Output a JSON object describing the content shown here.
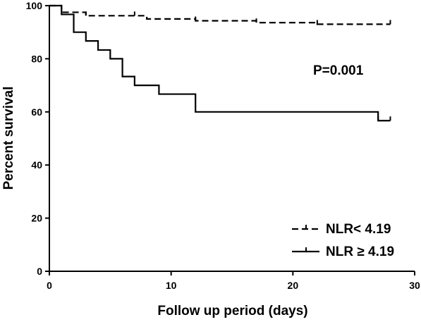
{
  "chart_data": {
    "type": "line",
    "subtype": "kaplan-meier",
    "title": "",
    "xlabel": "Follow up period (days)",
    "ylabel": "Percent survival",
    "xlim": [
      0,
      30
    ],
    "ylim": [
      0,
      100
    ],
    "x_ticks": [
      0,
      10,
      20,
      30
    ],
    "y_ticks": [
      0,
      20,
      40,
      60,
      80,
      100
    ],
    "grid": false,
    "legend_position": "bottom-right",
    "annotation": "P=0.001",
    "series": [
      {
        "name": "NLR< 4.19",
        "line_style": "dashed",
        "color": "#000000",
        "steps": [
          {
            "x": 0,
            "y": 100
          },
          {
            "x": 1,
            "y": 97.5
          },
          {
            "x": 3,
            "y": 96.2
          },
          {
            "x": 8,
            "y": 95.0
          },
          {
            "x": 12,
            "y": 94.3
          },
          {
            "x": 17,
            "y": 93.6
          },
          {
            "x": 22,
            "y": 93.0
          },
          {
            "x": 28,
            "y": 93.0
          }
        ],
        "censored": [
          3,
          7,
          12,
          17,
          22,
          28
        ]
      },
      {
        "name": "NLR ≥ 4.19",
        "line_style": "solid",
        "color": "#000000",
        "steps": [
          {
            "x": 0,
            "y": 100
          },
          {
            "x": 1,
            "y": 96.7
          },
          {
            "x": 2,
            "y": 90.0
          },
          {
            "x": 3,
            "y": 86.7
          },
          {
            "x": 4,
            "y": 83.3
          },
          {
            "x": 5,
            "y": 80.0
          },
          {
            "x": 6,
            "y": 73.3
          },
          {
            "x": 7,
            "y": 70.0
          },
          {
            "x": 9,
            "y": 66.7
          },
          {
            "x": 12,
            "y": 60.0
          },
          {
            "x": 27,
            "y": 56.7
          },
          {
            "x": 28,
            "y": 56.7
          }
        ],
        "censored": [
          27,
          28
        ]
      }
    ]
  }
}
